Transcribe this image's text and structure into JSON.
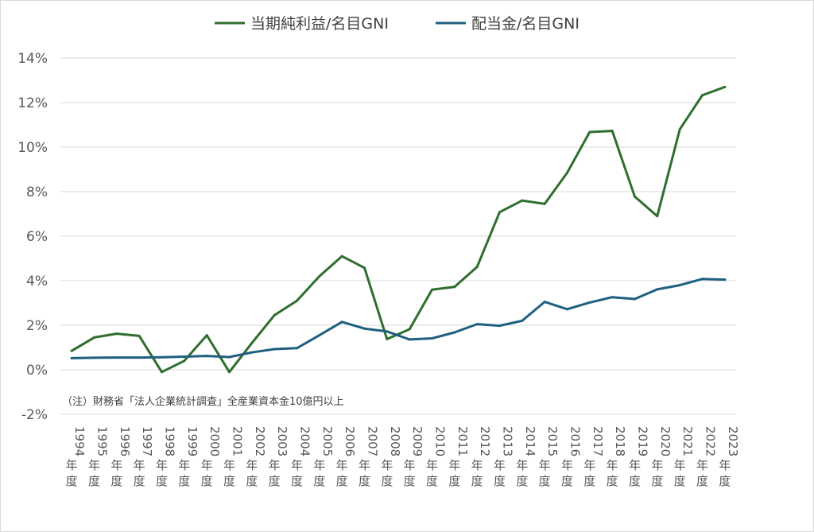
{
  "chart_data": {
    "type": "line",
    "title": "",
    "xlabel": "",
    "ylabel": "",
    "ylim": [
      -2,
      14
    ],
    "yticks": [
      -2,
      0,
      2,
      4,
      6,
      8,
      10,
      12,
      14
    ],
    "ytick_labels": [
      "-2%",
      "0%",
      "2%",
      "4%",
      "6%",
      "8%",
      "10%",
      "12%",
      "14%"
    ],
    "grid": true,
    "legend_position": "top",
    "categories": [
      {
        "year": "1994",
        "suffix": "年度"
      },
      {
        "year": "1995",
        "suffix": "年度"
      },
      {
        "year": "1996",
        "suffix": "年度"
      },
      {
        "year": "1997",
        "suffix": "年度"
      },
      {
        "year": "1998",
        "suffix": "年度"
      },
      {
        "year": "1999",
        "suffix": "年度"
      },
      {
        "year": "2000",
        "suffix": "年度"
      },
      {
        "year": "2001",
        "suffix": "年度"
      },
      {
        "year": "2002",
        "suffix": "年度"
      },
      {
        "year": "2003",
        "suffix": "年度"
      },
      {
        "year": "2004",
        "suffix": "年度"
      },
      {
        "year": "2005",
        "suffix": "年度"
      },
      {
        "year": "2006",
        "suffix": "年度"
      },
      {
        "year": "2007",
        "suffix": "年度"
      },
      {
        "year": "2008",
        "suffix": "年度"
      },
      {
        "year": "2009",
        "suffix": "年度"
      },
      {
        "year": "2010",
        "suffix": "年度"
      },
      {
        "year": "2011",
        "suffix": "年度"
      },
      {
        "year": "2012",
        "suffix": "年度"
      },
      {
        "year": "2013",
        "suffix": "年度"
      },
      {
        "year": "2014",
        "suffix": "年度"
      },
      {
        "year": "2015",
        "suffix": "年度"
      },
      {
        "year": "2016",
        "suffix": "年度"
      },
      {
        "year": "2017",
        "suffix": "年度"
      },
      {
        "year": "2018",
        "suffix": "年度"
      },
      {
        "year": "2019",
        "suffix": "年度"
      },
      {
        "year": "2020",
        "suffix": "年度"
      },
      {
        "year": "2021",
        "suffix": "年度"
      },
      {
        "year": "2022",
        "suffix": "年度"
      },
      {
        "year": "2023",
        "suffix": "年度"
      }
    ],
    "series": [
      {
        "name": "当期純利益/名目GNI",
        "color": "#2e6e2e",
        "values": [
          0.85,
          1.45,
          1.62,
          1.52,
          -0.1,
          0.4,
          1.55,
          -0.1,
          1.2,
          2.45,
          3.1,
          4.2,
          5.1,
          4.58,
          1.38,
          1.82,
          3.6,
          3.72,
          4.62,
          7.08,
          7.6,
          7.45,
          8.85,
          10.68,
          10.73,
          7.78,
          6.9,
          10.8,
          12.33,
          12.7
        ]
      },
      {
        "name": "配当金/名目GNI",
        "color": "#1f5f80",
        "values": [
          0.52,
          0.54,
          0.55,
          0.55,
          0.56,
          0.59,
          0.62,
          0.57,
          0.78,
          0.93,
          0.97,
          1.55,
          2.15,
          1.85,
          1.72,
          1.36,
          1.41,
          1.68,
          2.05,
          1.98,
          2.2,
          3.05,
          2.72,
          3.02,
          3.26,
          3.18,
          3.61,
          3.8,
          4.08,
          4.05
        ]
      }
    ],
    "annotation": "（注）財務省「法人企業統計調査」全産業資本金10億円以上"
  }
}
